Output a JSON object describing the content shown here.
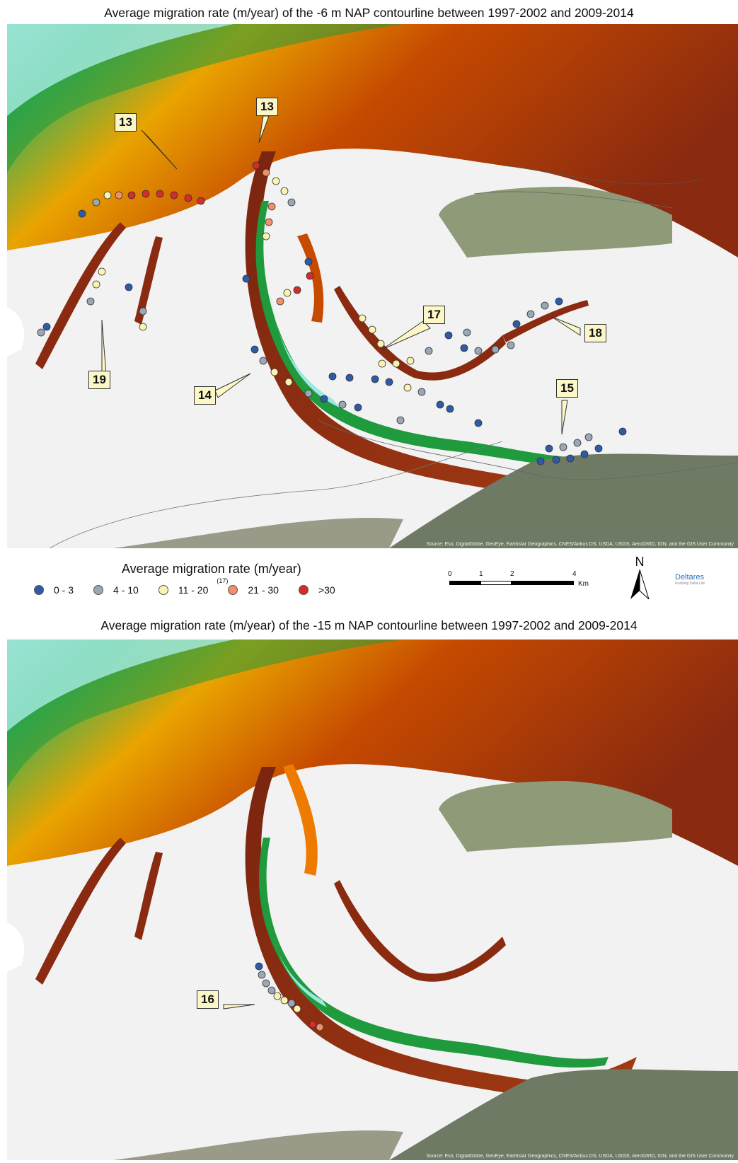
{
  "titles": {
    "map1": "Average migration rate (m/year) of the -6 m NAP contourline between 1997-2002 and 2009-2014",
    "map2": "Average migration rate (m/year) of the -15 m NAP contourline between 1997-2002 and 2009-2014"
  },
  "source_text": "Source: Esri, DigitalGlobe, GeoEye, Earthstar Geographics, CNES/Airbus DS, USDA, USGS, AeroGRID, IGN, and the GIS User Community",
  "callouts_map1": [
    "13",
    "13",
    "17",
    "18",
    "19",
    "14",
    "15"
  ],
  "callouts_map2": [
    "16"
  ],
  "legend": {
    "title": "Average migration rate (m/year)",
    "classes": [
      {
        "label": "0 - 3",
        "color": "#2e5aa6"
      },
      {
        "label": "4 - 10",
        "color": "#9aa7b4"
      },
      {
        "label": "11 - 20",
        "color": "#fbf3b0"
      },
      {
        "label": "21 - 30",
        "color": "#f0906a",
        "note": "(17)"
      },
      {
        "label": ">30",
        "color": "#d42b2b"
      }
    ]
  },
  "scalebar": {
    "ticks": [
      "0",
      "1",
      "2",
      "4"
    ],
    "unit": "Km"
  },
  "north_arrow": "N",
  "logo": {
    "name": "Deltares",
    "tagline": "Enabling Delta Life"
  },
  "colors": {
    "water_shallow": "#9ee8e4",
    "water_green": "#1f9a3c",
    "channel_red": "#8a2a10",
    "channel_orange": "#ef7a00",
    "tidal_flat": "#f2f2f2",
    "land": "#8f9a78"
  }
}
